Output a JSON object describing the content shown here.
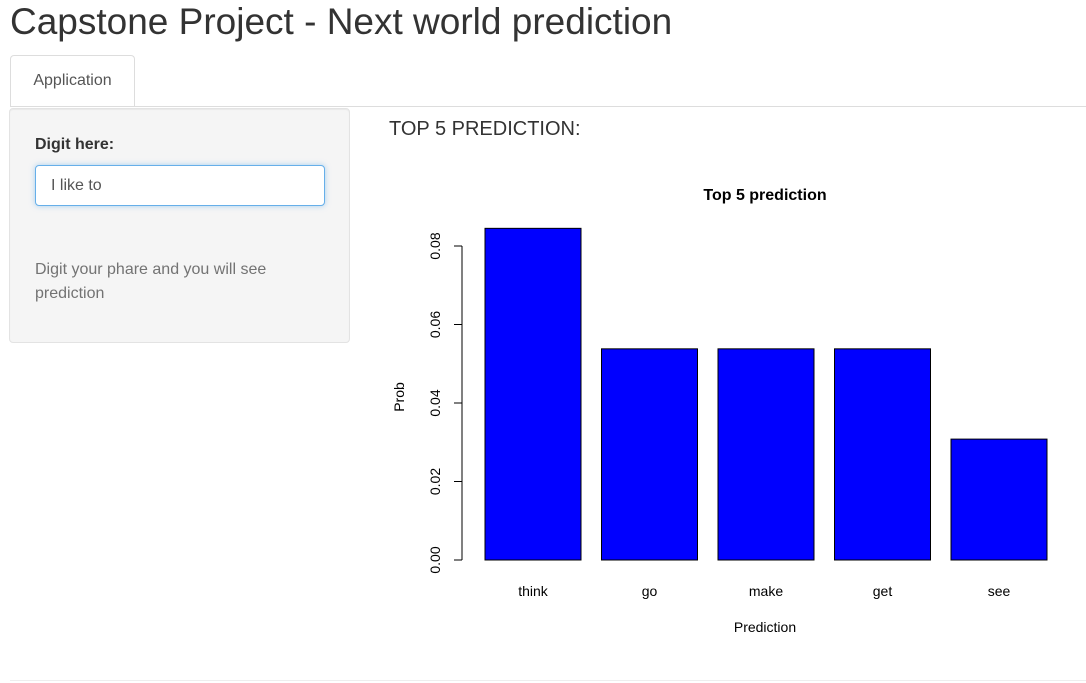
{
  "header": {
    "title": "Capstone Project - Next world prediction"
  },
  "tabs": [
    {
      "label": "Application"
    }
  ],
  "sidebar": {
    "input_label": "Digit here:",
    "input_value": "I like to",
    "help_text": "Digit your phare and you will see prediction"
  },
  "main": {
    "heading": "TOP 5 PREDICTION:"
  },
  "chart_data": {
    "type": "bar",
    "title": "Top 5 prediction",
    "xlabel": "Prediction",
    "ylabel": "Prob",
    "categories": [
      "think",
      "go",
      "make",
      "get",
      "see"
    ],
    "values": [
      0.0845,
      0.0538,
      0.0538,
      0.0538,
      0.0308
    ],
    "ylim": [
      0,
      0.08
    ],
    "yticks": [
      "0.00",
      "0.02",
      "0.04",
      "0.06",
      "0.08"
    ],
    "bar_color": "#0000ff",
    "grid": false
  }
}
